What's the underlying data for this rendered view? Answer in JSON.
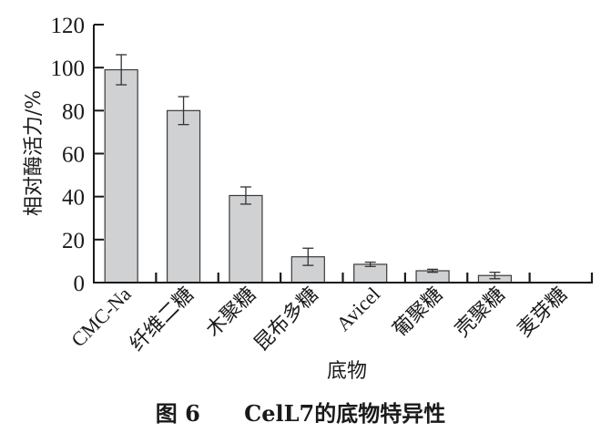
{
  "chart_data": {
    "type": "bar",
    "title": "",
    "caption": "图 6　　CelL7的底物特异性",
    "caption_parts": {
      "figure_no": "图 6",
      "text": "CelL7的底物特异性"
    },
    "xlabel": "底物",
    "ylabel": "相对酶活力/%",
    "ylim": [
      0,
      120
    ],
    "yticks": [
      0,
      20,
      40,
      60,
      80,
      100,
      120
    ],
    "grid": false,
    "legend": null,
    "categories": [
      "CMC-Na",
      "纤维二糖",
      "木聚糖",
      "昆布多糖",
      "Avicel",
      "葡聚糖",
      "壳聚糖",
      "麦芽糖"
    ],
    "values": [
      99,
      80,
      40.5,
      12,
      8.5,
      5.5,
      3.3,
      0
    ],
    "errors": [
      7,
      6.5,
      4,
      4,
      1,
      0.7,
      1.5,
      0
    ],
    "colors": {
      "bar_fill": "#d0d1d3",
      "bar_stroke": "#3a3a3a",
      "axis": "#1a1a1a"
    }
  }
}
